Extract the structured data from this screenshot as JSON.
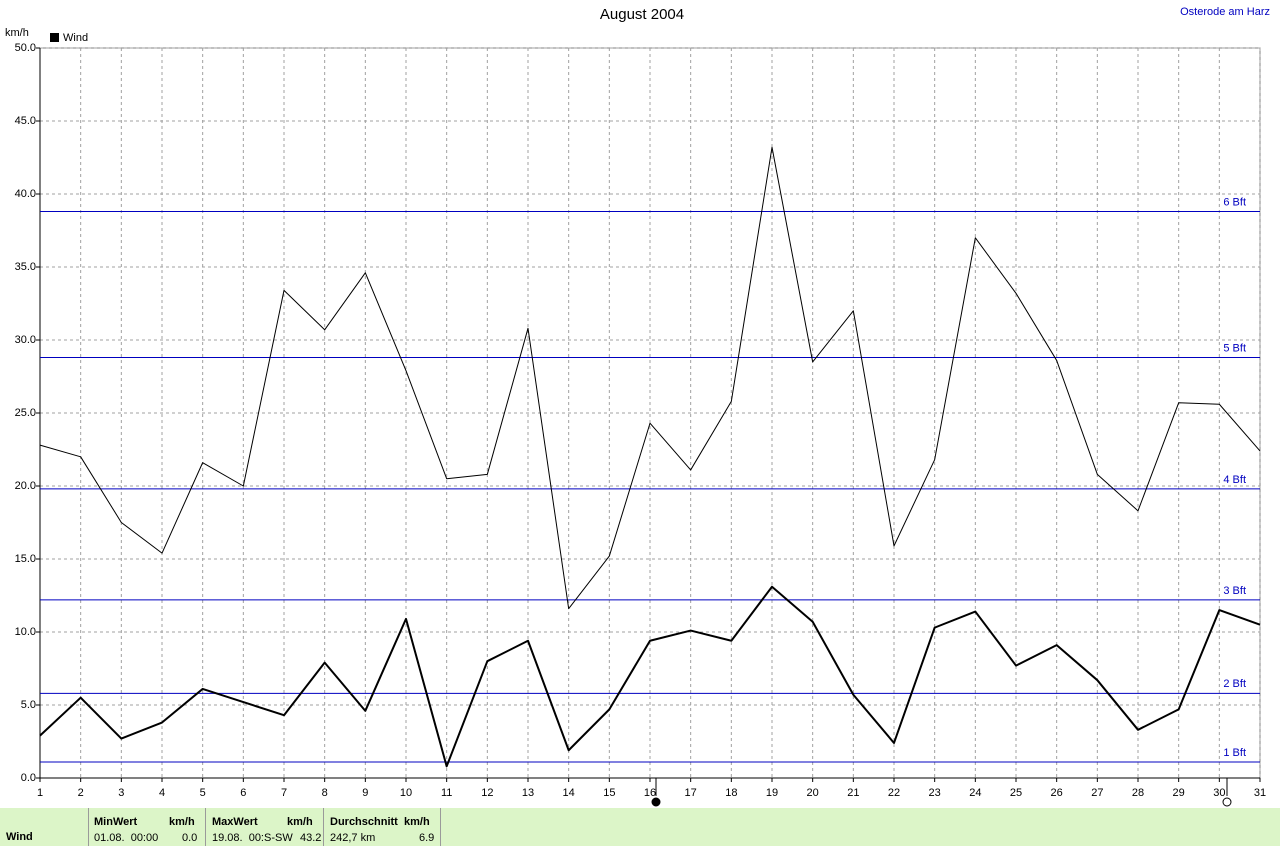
{
  "chart_data": {
    "type": "line",
    "title": "August 2004",
    "location": "Osterode am Harz",
    "y_label": "km/h",
    "x": [
      1,
      2,
      3,
      4,
      5,
      6,
      7,
      8,
      9,
      10,
      11,
      12,
      13,
      14,
      15,
      16,
      17,
      18,
      19,
      20,
      21,
      22,
      23,
      24,
      25,
      26,
      27,
      28,
      29,
      30,
      31
    ],
    "xlim": [
      1,
      31
    ],
    "xticks": [
      1,
      2,
      3,
      4,
      5,
      6,
      7,
      8,
      9,
      10,
      11,
      12,
      13,
      14,
      15,
      16,
      17,
      18,
      19,
      20,
      21,
      22,
      23,
      24,
      25,
      26,
      27,
      28,
      29,
      30,
      31
    ],
    "ylim": [
      0,
      50
    ],
    "yticks": [
      {
        "value": 0,
        "label": "0.0"
      },
      {
        "value": 5,
        "label": "5.0"
      },
      {
        "value": 10,
        "label": "10.0"
      },
      {
        "value": 15,
        "label": "15.0"
      },
      {
        "value": 20,
        "label": "20.0"
      },
      {
        "value": 25,
        "label": "25.0"
      },
      {
        "value": 30,
        "label": "30.0"
      },
      {
        "value": 35,
        "label": "35.0"
      },
      {
        "value": 40,
        "label": "40.0"
      },
      {
        "value": 45,
        "label": "45.0"
      },
      {
        "value": 50,
        "label": "50.0"
      }
    ],
    "grid": true,
    "series": [
      {
        "name": "Wind",
        "color": "#000000",
        "width": 2,
        "values": [
          2.9,
          5.5,
          2.7,
          3.8,
          6.1,
          5.2,
          4.3,
          7.9,
          4.6,
          10.9,
          0.8,
          8.0,
          9.4,
          1.9,
          4.7,
          9.4,
          10.1,
          9.4,
          13.1,
          10.7,
          5.7,
          2.4,
          10.3,
          11.4,
          7.7,
          9.1,
          6.7,
          3.3,
          4.7,
          11.5,
          10.5
        ]
      },
      {
        "color": "#000000",
        "width": 1,
        "values": [
          22.8,
          22.0,
          17.5,
          15.4,
          21.6,
          20.0,
          33.4,
          30.7,
          34.6,
          27.9,
          20.5,
          20.8,
          30.8,
          11.6,
          15.2,
          24.3,
          21.1,
          25.8,
          43.2,
          28.5,
          32.0,
          15.9,
          21.8,
          37.0,
          33.2,
          28.6,
          20.8,
          18.3,
          25.7,
          25.6,
          22.4
        ]
      }
    ],
    "ref_color": "#0000c0",
    "ref_lines": [
      {
        "value": 1.1,
        "label": "1 Bft"
      },
      {
        "value": 5.8,
        "label": "2 Bft"
      },
      {
        "value": 12.2,
        "label": "3 Bft"
      },
      {
        "value": 19.8,
        "label": "4 Bft"
      },
      {
        "value": 28.8,
        "label": "5 Bft"
      },
      {
        "value": 38.8,
        "label": "6 Bft"
      }
    ]
  },
  "footer": {
    "row_label": "Wind",
    "columns": [
      {
        "header": "MinWert",
        "unit": "km/h",
        "text": "01.08.  00:00",
        "value": "0.0"
      },
      {
        "header": "MaxWert",
        "unit": "km/h",
        "text": "19.08.  00:S-SW",
        "value": "43.2"
      },
      {
        "header": "Durchschnitt",
        "unit": "km/h",
        "text": "242,7 km",
        "value": "6.9"
      }
    ]
  }
}
